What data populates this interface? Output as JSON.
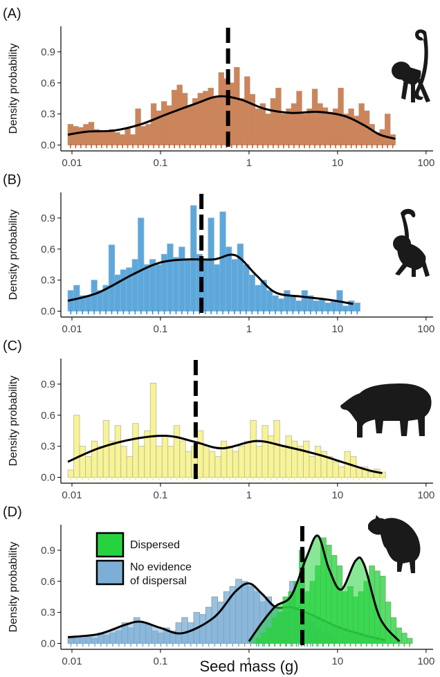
{
  "figure": {
    "x_axis_title": "Seed mass (g)"
  },
  "chart_data": [
    {
      "panel_label": "(A)",
      "type": "histogram-density",
      "xscale": "log",
      "x_ticks": [
        0.01,
        0.1,
        1,
        10,
        100
      ],
      "x_tick_labels": [
        "0.01",
        "0.1",
        "1",
        "10",
        "100"
      ],
      "y_ticks": [
        0.0,
        0.3,
        0.6,
        0.9
      ],
      "y_tick_labels": [
        "0.0",
        "0.3",
        "0.6",
        "0.9"
      ],
      "ylabel": "Density probability",
      "xlim": [
        0.0075,
        120
      ],
      "ylim": [
        -0.03,
        1.12
      ],
      "median_marker": 0.58,
      "silhouette": "monkey-icon",
      "series": [
        {
          "fill": "#c0622a",
          "edge": "#b98f72",
          "range": [
            0.009,
            45
          ],
          "bars": [
            0.2,
            0.18,
            0.17,
            0.2,
            0.22,
            0.15,
            0.14,
            0.14,
            0.15,
            0.12,
            0.1,
            0.16,
            0.1,
            0.35,
            0.18,
            0.2,
            0.4,
            0.33,
            0.42,
            0.38,
            0.53,
            0.58,
            0.5,
            0.38,
            0.45,
            0.5,
            0.52,
            0.55,
            0.47,
            0.7,
            0.64,
            0.6,
            0.75,
            0.45,
            0.66,
            0.49,
            0.35,
            0.4,
            0.3,
            0.45,
            0.55,
            0.3,
            0.35,
            0.4,
            0.52,
            0.3,
            0.35,
            0.54,
            0.4,
            0.36,
            0.3,
            0.35,
            0.55,
            0.3,
            0.35,
            0.28,
            0.4,
            0.33,
            0.2,
            0.12,
            0.15,
            0.3,
            0.1
          ],
          "density": [
            [
              0.009,
              0.1
            ],
            [
              0.015,
              0.13
            ],
            [
              0.03,
              0.14
            ],
            [
              0.06,
              0.2
            ],
            [
              0.12,
              0.3
            ],
            [
              0.25,
              0.4
            ],
            [
              0.45,
              0.47
            ],
            [
              0.8,
              0.44
            ],
            [
              1.5,
              0.35
            ],
            [
              3,
              0.31
            ],
            [
              6,
              0.32
            ],
            [
              12,
              0.28
            ],
            [
              20,
              0.19
            ],
            [
              30,
              0.1
            ],
            [
              45,
              0.06
            ]
          ]
        }
      ]
    },
    {
      "panel_label": "(B)",
      "type": "histogram-density",
      "xscale": "log",
      "x_ticks": [
        0.01,
        0.1,
        1,
        10,
        100
      ],
      "x_tick_labels": [
        "0.01",
        "0.1",
        "1",
        "10",
        "100"
      ],
      "y_ticks": [
        0.0,
        0.3,
        0.6,
        0.9
      ],
      "y_tick_labels": [
        "0.0",
        "0.3",
        "0.6",
        "0.9"
      ],
      "ylabel": "Density probability",
      "xlim": [
        0.0075,
        120
      ],
      "ylim": [
        -0.03,
        1.12
      ],
      "median_marker": 0.29,
      "silhouette": "spider-monkey-icon",
      "series": [
        {
          "fill": "#2e8fd4",
          "edge": "#8db1cd",
          "range": [
            0.009,
            18
          ],
          "bars": [
            0.2,
            0.25,
            0.15,
            0.15,
            0.3,
            0.2,
            0.25,
            0.64,
            0.35,
            0.4,
            0.42,
            0.5,
            0.9,
            0.45,
            0.5,
            0.45,
            0.55,
            0.65,
            0.52,
            0.62,
            0.5,
            1.02,
            0.55,
            0.5,
            0.9,
            0.45,
            0.96,
            0.62,
            0.5,
            0.65,
            0.45,
            0.35,
            0.25,
            0.3,
            0.2,
            0.15,
            0.12,
            0.2,
            0.15,
            0.1,
            0.2,
            0.15,
            0.1,
            0.12,
            0.08,
            0.1,
            0.2,
            0.05,
            0.1,
            0.08
          ],
          "density": [
            [
              0.009,
              0.1
            ],
            [
              0.02,
              0.18
            ],
            [
              0.05,
              0.36
            ],
            [
              0.1,
              0.47
            ],
            [
              0.2,
              0.5
            ],
            [
              0.4,
              0.5
            ],
            [
              0.7,
              0.54
            ],
            [
              1.2,
              0.35
            ],
            [
              2,
              0.18
            ],
            [
              4,
              0.14
            ],
            [
              8,
              0.11
            ],
            [
              15,
              0.07
            ]
          ]
        }
      ]
    },
    {
      "panel_label": "(C)",
      "type": "histogram-density",
      "xscale": "log",
      "x_ticks": [
        0.01,
        0.1,
        1,
        10,
        100
      ],
      "x_tick_labels": [
        "0.01",
        "0.1",
        "1",
        "10",
        "100"
      ],
      "y_ticks": [
        0.0,
        0.3,
        0.6,
        0.9
      ],
      "y_tick_labels": [
        "0.0",
        "0.3",
        "0.6",
        "0.9"
      ],
      "ylabel": "Density probability",
      "xlim": [
        0.0075,
        120
      ],
      "ylim": [
        -0.03,
        1.12
      ],
      "median_marker": 0.25,
      "silhouette": "tapir-icon",
      "series": [
        {
          "fill": "#f5f07a",
          "edge": "#b8b896",
          "range": [
            0.009,
            35
          ],
          "bars": [
            0.07,
            0.6,
            0.3,
            0.2,
            0.35,
            0.3,
            0.55,
            0.35,
            0.5,
            0.3,
            0.2,
            0.52,
            0.3,
            0.45,
            0.91,
            0.3,
            0.4,
            0.3,
            0.5,
            0.35,
            0.25,
            0.3,
            0.45,
            0.3,
            0.25,
            0.2,
            0.35,
            0.3,
            0.25,
            0.3,
            0.35,
            0.55,
            0.3,
            0.5,
            0.4,
            0.55,
            0.3,
            0.4,
            0.35,
            0.3,
            0.35,
            0.2,
            0.3,
            0.25,
            0.2,
            0.15,
            0.1,
            0.25,
            0.2,
            0.1,
            0.1,
            0.05,
            0.08,
            0.05
          ],
          "density": [
            [
              0.009,
              0.15
            ],
            [
              0.02,
              0.28
            ],
            [
              0.05,
              0.37
            ],
            [
              0.12,
              0.4
            ],
            [
              0.25,
              0.34
            ],
            [
              0.5,
              0.28
            ],
            [
              1.2,
              0.35
            ],
            [
              2.5,
              0.3
            ],
            [
              6,
              0.22
            ],
            [
              12,
              0.14
            ],
            [
              22,
              0.07
            ],
            [
              32,
              0.04
            ]
          ]
        }
      ]
    },
    {
      "panel_label": "(D)",
      "type": "histogram-density",
      "xscale": "log",
      "x_ticks": [
        0.01,
        0.1,
        1,
        10,
        100
      ],
      "x_tick_labels": [
        "0.01",
        "0.1",
        "1",
        "10",
        "100"
      ],
      "y_ticks": [
        0.0,
        0.3,
        0.6,
        0.9
      ],
      "y_tick_labels": [
        "0.0",
        "0.3",
        "0.6",
        "0.9"
      ],
      "ylabel": "Density probability",
      "xlim": [
        0.0075,
        120
      ],
      "ylim": [
        -0.03,
        1.12
      ],
      "median_marker": 4.0,
      "silhouette": "agouti-icon",
      "legend": {
        "placement": "top-left",
        "items": [
          {
            "label": "Dispersed",
            "color": "#26d33e"
          },
          {
            "label": "No evidence\nof dispersal",
            "color": "#7dafd6"
          }
        ]
      },
      "series": [
        {
          "name": "No evidence of dispersal",
          "fill": "#7dafd6",
          "edge": "#7f98ad",
          "range": [
            0.009,
            10
          ],
          "bars": [
            0.05,
            0.05,
            0.05,
            0.06,
            0.05,
            0.1,
            0.08,
            0.1,
            0.12,
            0.2,
            0.15,
            0.25,
            0.2,
            0.18,
            0.12,
            0.1,
            0.15,
            0.12,
            0.2,
            0.25,
            0.2,
            0.3,
            0.28,
            0.35,
            0.45,
            0.4,
            0.5,
            0.55,
            0.62,
            0.6,
            0.55,
            0.5,
            0.4,
            0.45,
            0.35,
            0.3,
            0.3,
            0.6,
            0.35,
            0.25,
            0.2,
            0.15,
            0.1,
            0.1,
            0.05
          ],
          "density": [
            [
              0.009,
              0.06
            ],
            [
              0.02,
              0.09
            ],
            [
              0.04,
              0.18
            ],
            [
              0.06,
              0.21
            ],
            [
              0.1,
              0.15
            ],
            [
              0.18,
              0.1
            ],
            [
              0.4,
              0.25
            ],
            [
              0.7,
              0.5
            ],
            [
              1,
              0.58
            ],
            [
              1.4,
              0.48
            ],
            [
              2,
              0.35
            ],
            [
              3,
              0.35
            ],
            [
              5,
              0.28
            ],
            [
              10,
              0.16
            ],
            [
              20,
              0.08
            ],
            [
              35,
              0.03
            ]
          ]
        },
        {
          "name": "Dispersed",
          "fill": "#26d33e",
          "edge": "#6aa96e",
          "range": [
            1.2,
            70
          ],
          "bars": [
            0.05,
            0.1,
            0.15,
            0.25,
            0.3,
            0.45,
            0.5,
            0.6,
            0.9,
            0.5,
            0.6,
            0.75,
            1.02,
            0.95,
            0.85,
            0.75,
            0.5,
            0.55,
            0.45,
            0.5,
            0.6,
            0.75,
            0.7,
            0.65,
            0.4,
            0.25,
            0.15,
            0.1,
            0.05
          ],
          "density": [
            [
              1,
              0.02
            ],
            [
              1.4,
              0.2
            ],
            [
              2,
              0.36
            ],
            [
              3,
              0.46
            ],
            [
              4.5,
              0.84
            ],
            [
              6,
              1.04
            ],
            [
              8,
              0.72
            ],
            [
              11,
              0.52
            ],
            [
              16,
              0.8
            ],
            [
              20,
              0.76
            ],
            [
              30,
              0.25
            ],
            [
              50,
              0.02
            ]
          ]
        }
      ]
    }
  ]
}
